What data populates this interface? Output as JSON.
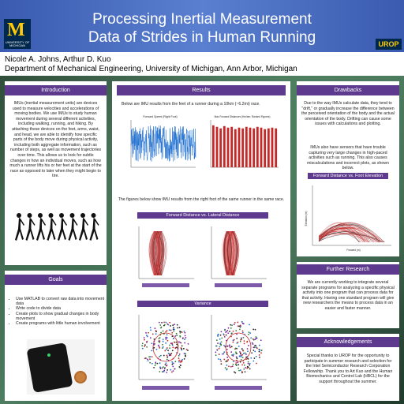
{
  "header": {
    "title_line1": "Processing Inertial Measurement",
    "title_line2": "Data of Strides in Human Running",
    "logo_text": "UNIVERSITY OF MICHIGAN",
    "urop_label": "UROP"
  },
  "authors": {
    "names": "Nicole A. Johns, Arthur D. Kuo",
    "affiliation": "Department of Mechanical Engineering, University of Michigan, Ann Arbor, Michigan"
  },
  "introduction": {
    "title": "Introduction",
    "text": "IMUs (inertial measurement units) are devices used to measure velocities and accelerations of moving bodies. We use IMUs to study human movement during several different activities, including walking, running, and hiking. By attaching these devices on the feet, arms, waist, and head, we are able to identify how specific parts of the body move during physical activity, including both aggregate information, such as number of steps, as well as movement trajectories over time. This allows us to look for subtle changes in how an individual moves, such as how much a runner lifts his or her feet at the start of the race as opposed to later when they might begin to tire."
  },
  "goals": {
    "title": "Goals",
    "items": [
      "Use MATLAB to convert raw data into movement data",
      "Write code to divide data",
      "Create plots to show gradual changes in body movement",
      "Create programs with little human involvement"
    ]
  },
  "results": {
    "title": "Results",
    "intro": "Below are IMU results from the feet of a runner during a 10km (~6.2mi) race.",
    "chart1_title": "Forward Speed (Right Foot)",
    "chart2_title": "Max Forward Distances (Hm/ste; Ranked Figures)",
    "caption": "The figures below show IMU results from the right foot of the same runner in the same race.",
    "forward_lateral_title": "Forward Distance vs. Lateral Distance",
    "variance_title": "Variance"
  },
  "drawbacks": {
    "title": "Drawbacks",
    "text1": "Due to the way IMUs calculate data, they tend to \"drift,\" or gradually increase the difference between the perceived orientation of the body and the actual orientation of the body. Drifting can cause some issues with calculations and plotting.",
    "text2": "IMUs also have sensors that have trouble capturing very large changes in high-paced activities such as running. This also causes miscalculations and incorrect plots, as shown below.",
    "chart_title": "Forward Distance vs. Foot Elevation",
    "ylabel": "Elevation (m)",
    "xlabel": "Forward (m)"
  },
  "further_research": {
    "title": "Further Research",
    "text": "We are currently working to integrate several separate programs for analyzing a specific physical activity into one program that can process data for that activity. Having one standard program will give new researchers the means to process data in an easier and faster manner."
  },
  "acknowledgements": {
    "title": "Acknowledgements",
    "text": "Special thanks to UROP for the opportunity to participate in summer research and selection for the Intel Semiconductor Research Corporation Fellowship. Thank you to Art Kuo and the Human Biomechanics and Control Lab (HBCL) for the support throughout the summer."
  },
  "colors": {
    "header": "#4a6cc0",
    "panel_title": "#5d3a8e",
    "plot_blue": "#1f6fd0",
    "plot_red": "#c62828"
  },
  "chart_data": [
    {
      "type": "line",
      "title": "Forward Speed (Right Foot)",
      "xlabel": "",
      "ylabel": ""
    },
    {
      "type": "bar",
      "title": "Max Forward Distances (Hm/ste; Ranked Figures)",
      "values": [
        5.5,
        5.3,
        5.1,
        5.4,
        5.2,
        5.3,
        5.0,
        5.2,
        5.1,
        5.3,
        5.2,
        5.1,
        5.3,
        5.2,
        5.0,
        5.1,
        5.2,
        5.1
      ],
      "ylim": [
        0,
        6
      ]
    }
  ]
}
